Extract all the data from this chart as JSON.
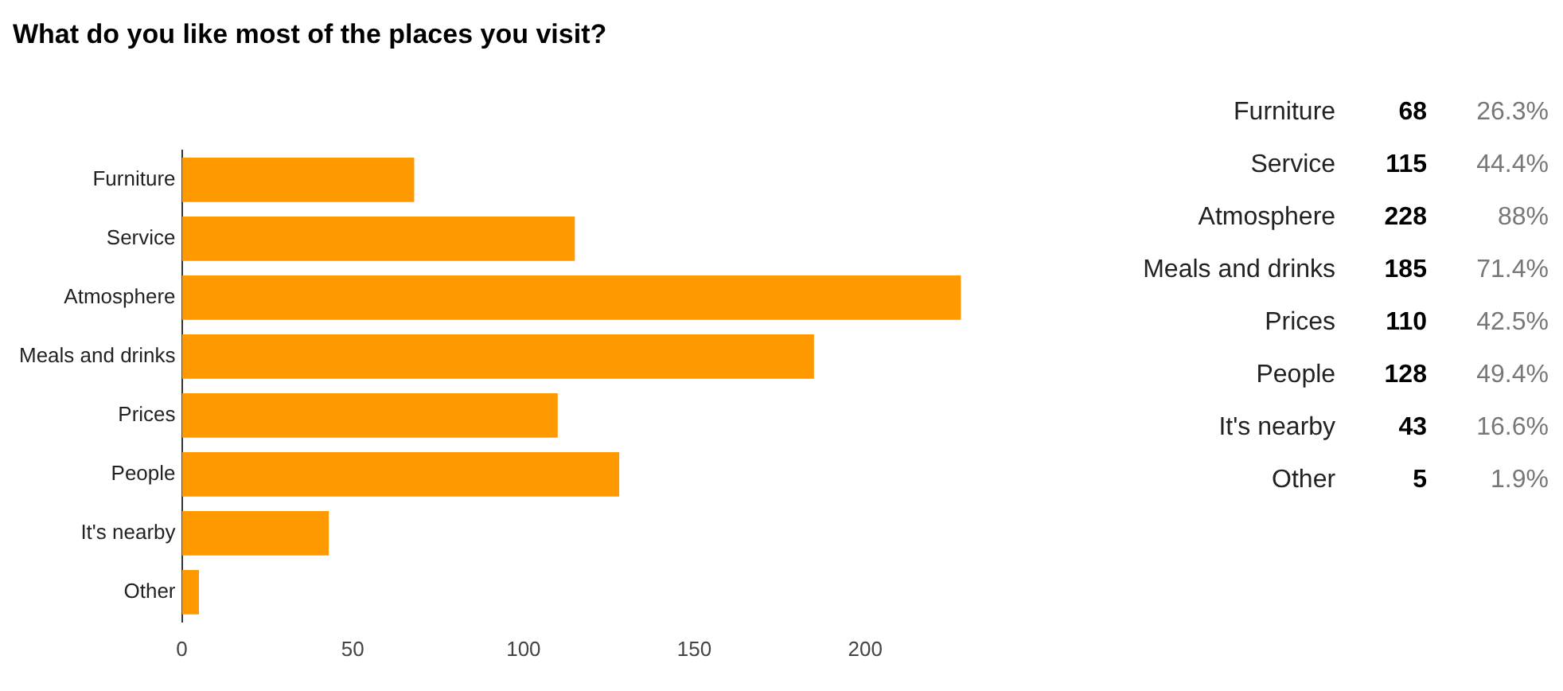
{
  "chart_data": [
    {
      "type": "bar",
      "orientation": "horizontal",
      "title": "What do you like most of the places you visit?",
      "categories": [
        "Furniture",
        "Service",
        "Atmosphere",
        "Meals and drinks",
        "Prices",
        "People",
        "It's nearby",
        "Other"
      ],
      "values": [
        68,
        115,
        228,
        185,
        110,
        128,
        43,
        5
      ],
      "color": "#ff9900",
      "xlim": [
        0,
        230
      ],
      "xticks": [
        0,
        50,
        100,
        150,
        200
      ]
    },
    {
      "type": "other",
      "categories": [
        "Furniture",
        "Service",
        "Atmosphere",
        "Meals and drinks",
        "Prices",
        "People",
        "It's nearby",
        "Other"
      ],
      "values": [
        68,
        115,
        228,
        185,
        110,
        128,
        43,
        5
      ],
      "data_labels": true,
      "annotations": [
        "26.3%",
        "44.4%",
        "88%",
        "71.4%",
        "42.5%",
        "49.4%",
        "16.6%",
        "1.9%"
      ]
    }
  ]
}
